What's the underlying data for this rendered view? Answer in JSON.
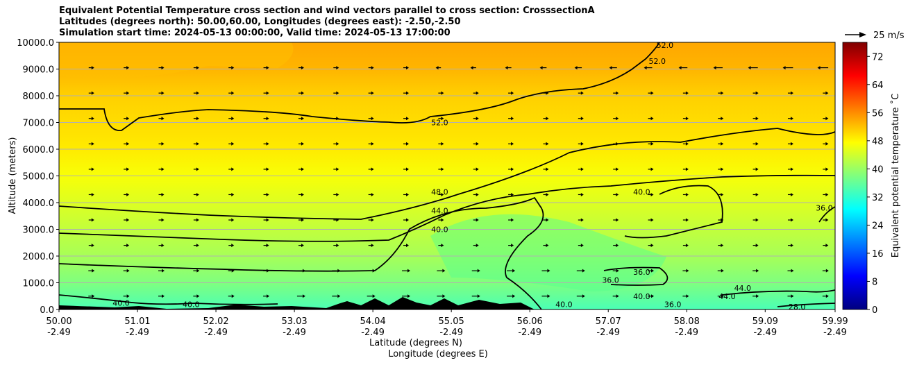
{
  "title_lines": [
    "Equivalent Potential Temperature cross section and wind vectors parallel to cross section: CrosssectionA",
    "Latitudes (degrees north): 50.00,60.00, Longitudes (degrees east): -2.50,-2.50",
    "Simulation start time: 2024-05-13 00:00:00, Valid time: 2024-05-13 17:00:00"
  ],
  "chart_data": {
    "type": "heatmap",
    "ylabel": "Altitude (meters)",
    "xlabel_lat": "Latitude (degrees N)",
    "xlabel_lon": "Longitude (degrees E)",
    "ylim": [
      0,
      10000
    ],
    "xlim": [
      50.0,
      59.99
    ],
    "grid": "horizontal",
    "y_ticks": [
      "0.0",
      "1000.0",
      "2000.0",
      "3000.0",
      "4000.0",
      "5000.0",
      "6000.0",
      "7000.0",
      "8000.0",
      "9000.0",
      "10000.0"
    ],
    "x_ticks": [
      {
        "lat": "50.00",
        "lon": "-2.49"
      },
      {
        "lat": "51.01",
        "lon": "-2.49"
      },
      {
        "lat": "52.02",
        "lon": "-2.49"
      },
      {
        "lat": "53.03",
        "lon": "-2.49"
      },
      {
        "lat": "54.04",
        "lon": "-2.49"
      },
      {
        "lat": "55.05",
        "lon": "-2.49"
      },
      {
        "lat": "56.06",
        "lon": "-2.49"
      },
      {
        "lat": "57.07",
        "lon": "-2.49"
      },
      {
        "lat": "58.08",
        "lon": "-2.49"
      },
      {
        "lat": "59.09",
        "lon": "-2.49"
      },
      {
        "lat": "59.99",
        "lon": "-2.49"
      }
    ],
    "colorbar": {
      "label": "Equivalent potential temperature ˚C",
      "range": [
        0,
        76
      ],
      "ticks": [
        "0",
        "8",
        "16",
        "24",
        "32",
        "40",
        "48",
        "56",
        "64",
        "72"
      ],
      "colors": [
        "#00007f",
        "#0000ff",
        "#007fff",
        "#00ffff",
        "#7fff7f",
        "#ffff00",
        "#ff7f00",
        "#ff0000",
        "#7f0000"
      ]
    },
    "wind_key": {
      "label": "25 m/s",
      "value_ms": 25
    },
    "field_bands_c": [
      {
        "alt_m": 0,
        "value": 34
      },
      {
        "alt_m": 1000,
        "value": 38
      },
      {
        "alt_m": 2000,
        "value": 41
      },
      {
        "alt_m": 3000,
        "value": 43
      },
      {
        "alt_m": 4000,
        "value": 45
      },
      {
        "alt_m": 5000,
        "value": 47
      },
      {
        "alt_m": 6000,
        "value": 49
      },
      {
        "alt_m": 7000,
        "value": 50
      },
      {
        "alt_m": 8000,
        "value": 51
      },
      {
        "alt_m": 9000,
        "value": 53
      },
      {
        "alt_m": 10000,
        "value": 54
      }
    ],
    "contour_labels": [
      {
        "text": "52.0",
        "lat": 54.9,
        "alt": 7000
      },
      {
        "text": "52.0",
        "lat": 57.7,
        "alt": 9300
      },
      {
        "text": "52.0",
        "lat": 57.8,
        "alt": 9900
      },
      {
        "text": "48.0",
        "lat": 54.9,
        "alt": 4400
      },
      {
        "text": "44.0",
        "lat": 54.9,
        "alt": 3700
      },
      {
        "text": "40.0",
        "lat": 54.9,
        "alt": 3000
      },
      {
        "text": "40.0",
        "lat": 57.5,
        "alt": 4400
      },
      {
        "text": "36.0",
        "lat": 59.85,
        "alt": 3800
      },
      {
        "text": "36.0",
        "lat": 57.5,
        "alt": 1400
      },
      {
        "text": "36.0",
        "lat": 57.1,
        "alt": 1100
      },
      {
        "text": "40.0",
        "lat": 50.8,
        "alt": 250
      },
      {
        "text": "40.0",
        "lat": 51.7,
        "alt": 200
      },
      {
        "text": "40.0",
        "lat": 57.5,
        "alt": 500
      },
      {
        "text": "36.0",
        "lat": 57.9,
        "alt": 200
      },
      {
        "text": "44.0",
        "lat": 58.6,
        "alt": 500
      },
      {
        "text": "44.0",
        "lat": 58.8,
        "alt": 800
      },
      {
        "text": "28.0",
        "lat": 59.5,
        "alt": 100
      },
      {
        "text": "40.0",
        "lat": 56.5,
        "alt": 200
      }
    ]
  }
}
